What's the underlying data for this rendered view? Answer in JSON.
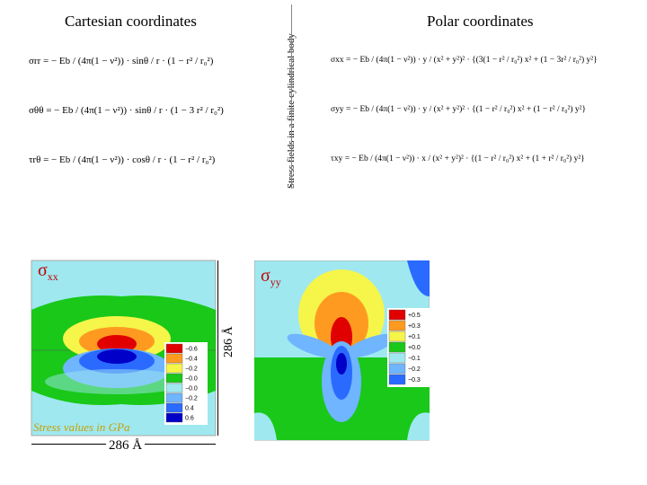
{
  "left_heading": "Cartesian coordinates",
  "right_heading": "Polar coordinates",
  "vertical_caption": "Stress fields in a finite cylindrical body",
  "cartesian_equations": [
    "σrr = − Eb / (4π(1 − ν²)) · sinθ / r · (1 − r² / r₀²)",
    "σθθ = − Eb / (4π(1 − ν²)) · sinθ / r · (1 − 3 r² / r₀²)",
    "τrθ = − Eb / (4π(1 − ν²)) · cosθ / r · (1 − r² / r₀²)"
  ],
  "polar_equations": [
    "σxx = − Eb / (4π(1 − ν²)) · y / (x² + y²)² · {(3(1 − r² / r₀²) x² + (1 − 3r² / r₀²) y²}",
    "σyy = − Eb / (4π(1 − ν²)) · y / (x² + y²)² · {(1 − r² / r₀²) x² + (1 − r² / r₀²) y²}",
    "τxy = − Eb / (4π(1 − ν²)) · x / (x² + y²)² · {(1 − r² / r₀²) x² + (1 + r² / r₀²) y²}"
  ],
  "plots": [
    {
      "symbol": "σ",
      "subscript": "xx",
      "legend": [
        {
          "color": "#e00000",
          "label": "−0.6"
        },
        {
          "color": "#ff9a20",
          "label": "−0.4"
        },
        {
          "color": "#f5f54a",
          "label": "−0.2"
        },
        {
          "color": "#19c819",
          "label": "−0.0"
        },
        {
          "color": "#9fe8f0",
          "label": "−0.0"
        },
        {
          "color": "#6fb5ff",
          "label": "−0.2"
        },
        {
          "color": "#2a6aff",
          "label": "0.4"
        },
        {
          "color": "#0000c8",
          "label": "0.6"
        }
      ]
    },
    {
      "symbol": "σ",
      "subscript": "yy",
      "legend": [
        {
          "color": "#e00000",
          "label": "+0.5"
        },
        {
          "color": "#ff9a20",
          "label": "+0.3"
        },
        {
          "color": "#f5f54a",
          "label": "+0.1"
        },
        {
          "color": "#19c819",
          "label": "+0.0"
        },
        {
          "color": "#9fe8f0",
          "label": "−0.1"
        },
        {
          "color": "#6fb5ff",
          "label": "−0.2"
        },
        {
          "color": "#2a6aff",
          "label": "−0.3"
        }
      ]
    }
  ],
  "note": "Stress values in GPa",
  "dim_horizontal": "286 Å",
  "dim_vertical": "286 Å"
}
